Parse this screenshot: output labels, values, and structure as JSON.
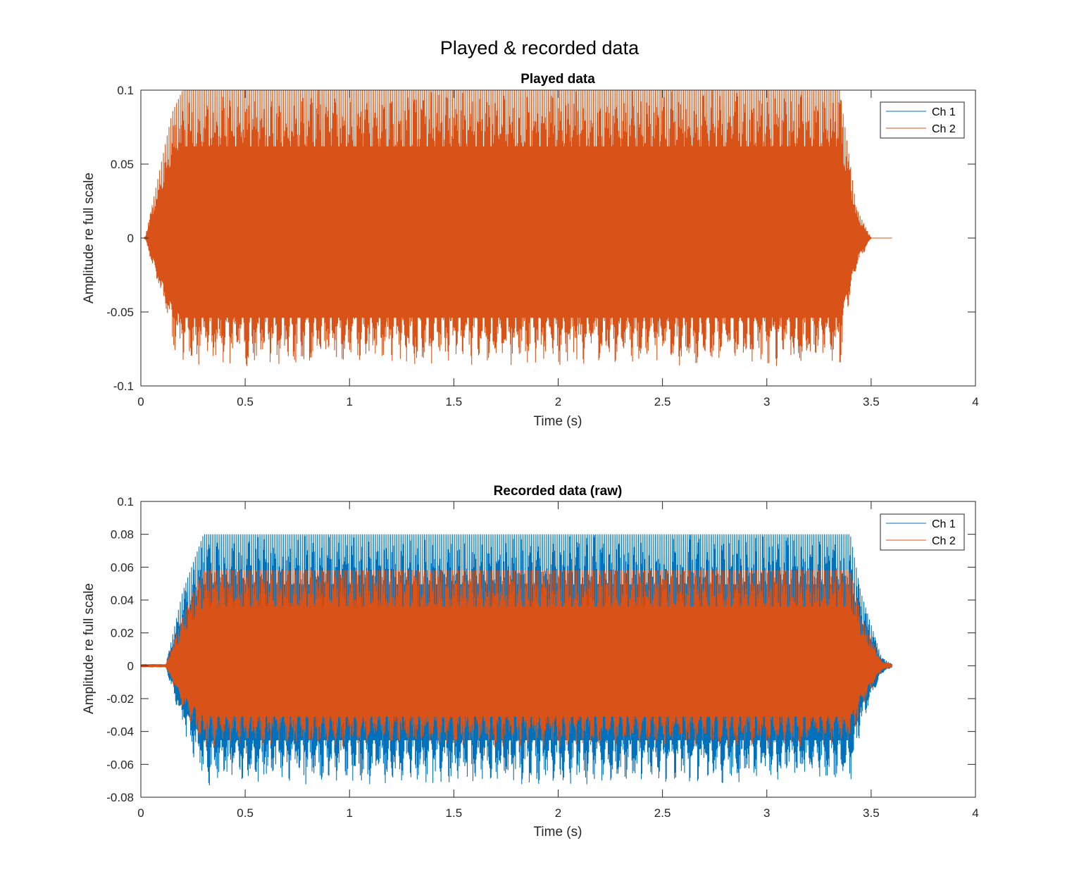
{
  "figure": {
    "title": "Played & recorded data"
  },
  "chart_data": [
    {
      "type": "line",
      "title": "Played data",
      "xlabel": "Time (s)",
      "ylabel": "Amplitude re full scale",
      "xlim": [
        0,
        4
      ],
      "ylim": [
        -0.1,
        0.1
      ],
      "xticks": [
        "0",
        "0.5",
        "1",
        "1.5",
        "2",
        "2.5",
        "3",
        "3.5",
        "4"
      ],
      "yticks": [
        "-0.1",
        "-0.05",
        "0",
        "0.05",
        "0.1"
      ],
      "legend_position": "top-right",
      "series": [
        {
          "name": "Ch 1",
          "color": "#0072BD",
          "visible": false,
          "envelope": {
            "t": [
              0,
              0.02,
              0.15,
              0.2,
              3.35,
              3.43,
              3.5,
              3.6
            ],
            "pos": [
              0,
              0,
              0.085,
              0.1,
              0.1,
              0.02,
              0,
              0
            ],
            "neg": [
              0,
              0,
              -0.075,
              -0.087,
              -0.087,
              -0.02,
              0,
              0
            ]
          }
        },
        {
          "name": "Ch 2",
          "color": "#D95319",
          "visible": true,
          "envelope": {
            "t": [
              0,
              0.02,
              0.15,
              0.2,
              3.35,
              3.43,
              3.5,
              3.6
            ],
            "pos": [
              0,
              0,
              0.085,
              0.1,
              0.1,
              0.02,
              0,
              0
            ],
            "neg": [
              0,
              0,
              -0.075,
              -0.087,
              -0.087,
              -0.02,
              0,
              0
            ]
          }
        }
      ]
    },
    {
      "type": "line",
      "title": "Recorded data (raw)",
      "xlabel": "Time (s)",
      "ylabel": "Amplitude re full scale",
      "xlim": [
        0,
        4
      ],
      "ylim": [
        -0.08,
        0.1
      ],
      "xticks": [
        "0",
        "0.5",
        "1",
        "1.5",
        "2",
        "2.5",
        "3",
        "3.5",
        "4"
      ],
      "yticks": [
        "-0.08",
        "-0.06",
        "-0.04",
        "-0.02",
        "0",
        "0.02",
        "0.04",
        "0.06",
        "0.08",
        "0.1"
      ],
      "legend_position": "top-right",
      "series": [
        {
          "name": "Ch 1",
          "color": "#0072BD",
          "visible": true,
          "envelope": {
            "t": [
              0,
              0.12,
              0.2,
              0.3,
              3.4,
              3.45,
              3.55,
              3.6
            ],
            "pos": [
              0.001,
              0.001,
              0.045,
              0.08,
              0.08,
              0.045,
              0.005,
              0.001
            ],
            "neg": [
              -0.001,
              -0.001,
              -0.04,
              -0.073,
              -0.073,
              -0.04,
              -0.005,
              -0.001
            ]
          }
        },
        {
          "name": "Ch 2",
          "color": "#D95319",
          "visible": true,
          "envelope": {
            "t": [
              0,
              0.12,
              0.2,
              0.3,
              3.4,
              3.45,
              3.55,
              3.6
            ],
            "pos": [
              0.001,
              0.001,
              0.03,
              0.058,
              0.058,
              0.03,
              0.003,
              0.001
            ],
            "neg": [
              -0.001,
              -0.001,
              -0.028,
              -0.05,
              -0.05,
              -0.028,
              -0.003,
              -0.001
            ]
          }
        }
      ]
    }
  ]
}
